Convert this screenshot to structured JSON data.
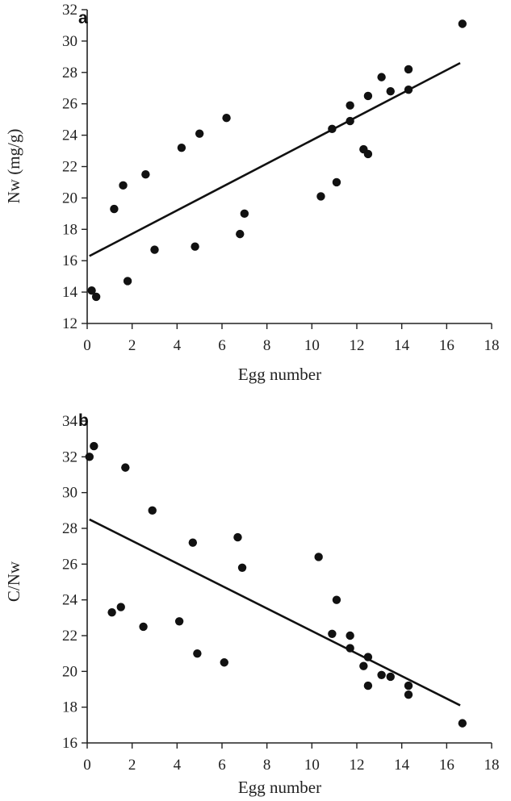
{
  "chart_data": [
    {
      "type": "scatter",
      "panel_label": "a",
      "xlabel": "Egg number",
      "ylabel": "Nw (mg/g)",
      "xlim": [
        0,
        18
      ],
      "ylim": [
        12,
        32
      ],
      "xticks": [
        0,
        2,
        4,
        6,
        8,
        10,
        12,
        14,
        16,
        18
      ],
      "yticks": [
        12,
        14,
        16,
        18,
        20,
        22,
        24,
        26,
        28,
        30,
        32
      ],
      "grid": false,
      "points": [
        {
          "x": 0.2,
          "y": 14.1
        },
        {
          "x": 0.4,
          "y": 13.7
        },
        {
          "x": 1.2,
          "y": 19.3
        },
        {
          "x": 1.6,
          "y": 20.8
        },
        {
          "x": 1.8,
          "y": 14.7
        },
        {
          "x": 2.6,
          "y": 21.5
        },
        {
          "x": 3.0,
          "y": 16.7
        },
        {
          "x": 4.2,
          "y": 23.2
        },
        {
          "x": 4.8,
          "y": 16.9
        },
        {
          "x": 5.0,
          "y": 24.1
        },
        {
          "x": 6.2,
          "y": 25.1
        },
        {
          "x": 6.8,
          "y": 17.7
        },
        {
          "x": 7.0,
          "y": 19.0
        },
        {
          "x": 10.4,
          "y": 20.1
        },
        {
          "x": 10.9,
          "y": 24.4
        },
        {
          "x": 11.1,
          "y": 21.0
        },
        {
          "x": 11.7,
          "y": 25.9
        },
        {
          "x": 11.7,
          "y": 24.9
        },
        {
          "x": 12.3,
          "y": 23.1
        },
        {
          "x": 12.5,
          "y": 22.8
        },
        {
          "x": 12.5,
          "y": 26.5
        },
        {
          "x": 13.1,
          "y": 27.7
        },
        {
          "x": 13.5,
          "y": 26.8
        },
        {
          "x": 14.3,
          "y": 28.2
        },
        {
          "x": 14.3,
          "y": 26.9
        },
        {
          "x": 16.7,
          "y": 31.1
        }
      ],
      "trendline": {
        "x": [
          0.1,
          16.6
        ],
        "y": [
          16.3,
          28.6
        ]
      }
    },
    {
      "type": "scatter",
      "panel_label": "b",
      "xlabel": "Egg number",
      "ylabel": "C/Nw",
      "xlim": [
        0,
        18
      ],
      "ylim": [
        16,
        34
      ],
      "xticks": [
        0,
        2,
        4,
        6,
        8,
        10,
        12,
        14,
        16,
        18
      ],
      "yticks": [
        16,
        18,
        20,
        22,
        24,
        26,
        28,
        30,
        32,
        34
      ],
      "grid": false,
      "points": [
        {
          "x": 0.1,
          "y": 32.0
        },
        {
          "x": 0.3,
          "y": 32.6
        },
        {
          "x": 1.1,
          "y": 23.3
        },
        {
          "x": 1.5,
          "y": 23.6
        },
        {
          "x": 1.7,
          "y": 31.4
        },
        {
          "x": 2.5,
          "y": 22.5
        },
        {
          "x": 2.9,
          "y": 29.0
        },
        {
          "x": 4.1,
          "y": 22.8
        },
        {
          "x": 4.7,
          "y": 27.2
        },
        {
          "x": 4.9,
          "y": 21.0
        },
        {
          "x": 6.1,
          "y": 20.5
        },
        {
          "x": 6.7,
          "y": 27.5
        },
        {
          "x": 6.9,
          "y": 25.8
        },
        {
          "x": 10.3,
          "y": 26.4
        },
        {
          "x": 10.9,
          "y": 22.1
        },
        {
          "x": 11.1,
          "y": 24.0
        },
        {
          "x": 11.7,
          "y": 22.0
        },
        {
          "x": 11.7,
          "y": 21.3
        },
        {
          "x": 12.3,
          "y": 20.3
        },
        {
          "x": 12.5,
          "y": 20.8
        },
        {
          "x": 12.5,
          "y": 19.2
        },
        {
          "x": 13.1,
          "y": 19.8
        },
        {
          "x": 13.5,
          "y": 19.7
        },
        {
          "x": 14.3,
          "y": 19.2
        },
        {
          "x": 14.3,
          "y": 18.7
        },
        {
          "x": 16.7,
          "y": 17.1
        }
      ],
      "trendline": {
        "x": [
          0.1,
          16.6
        ],
        "y": [
          28.5,
          18.1
        ]
      }
    }
  ]
}
